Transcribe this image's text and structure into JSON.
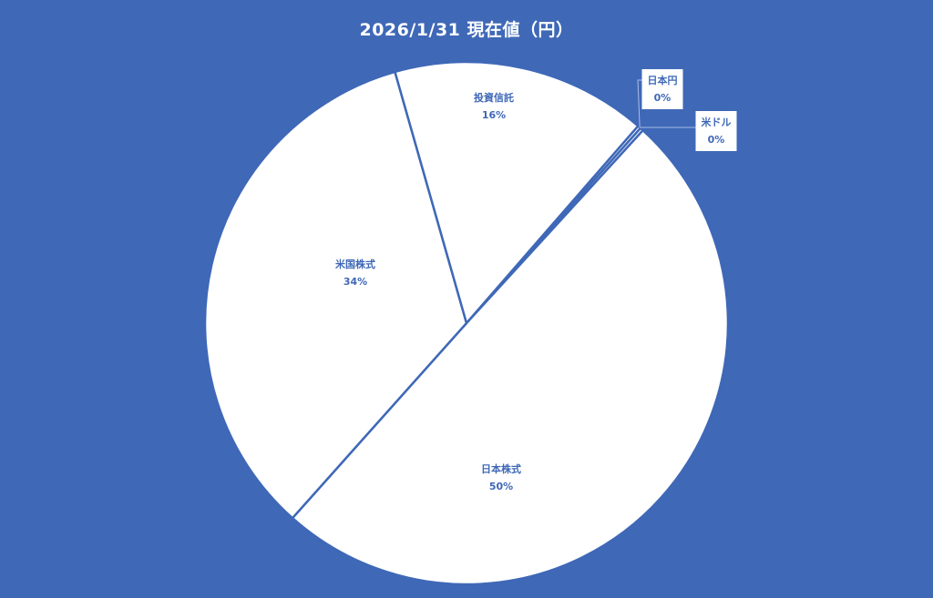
{
  "chart_data": {
    "type": "pie",
    "title": "2026/1/31 現在値（円）",
    "start_angle_deg": 41,
    "slice_color": "#FFFFFF",
    "border_color": "#3F68B7",
    "background_color": "#3F68B7",
    "slices": [
      {
        "label": "日本円",
        "value": 0.2,
        "pct_label": "0%"
      },
      {
        "label": "米ドル",
        "value": 0.2,
        "pct_label": "0%"
      },
      {
        "label": "日本株式",
        "value": 49.8,
        "pct_label": "50%"
      },
      {
        "label": "米国株式",
        "value": 34,
        "pct_label": "34%"
      },
      {
        "label": "投資信託",
        "value": 15.8,
        "pct_label": "16%"
      }
    ]
  }
}
